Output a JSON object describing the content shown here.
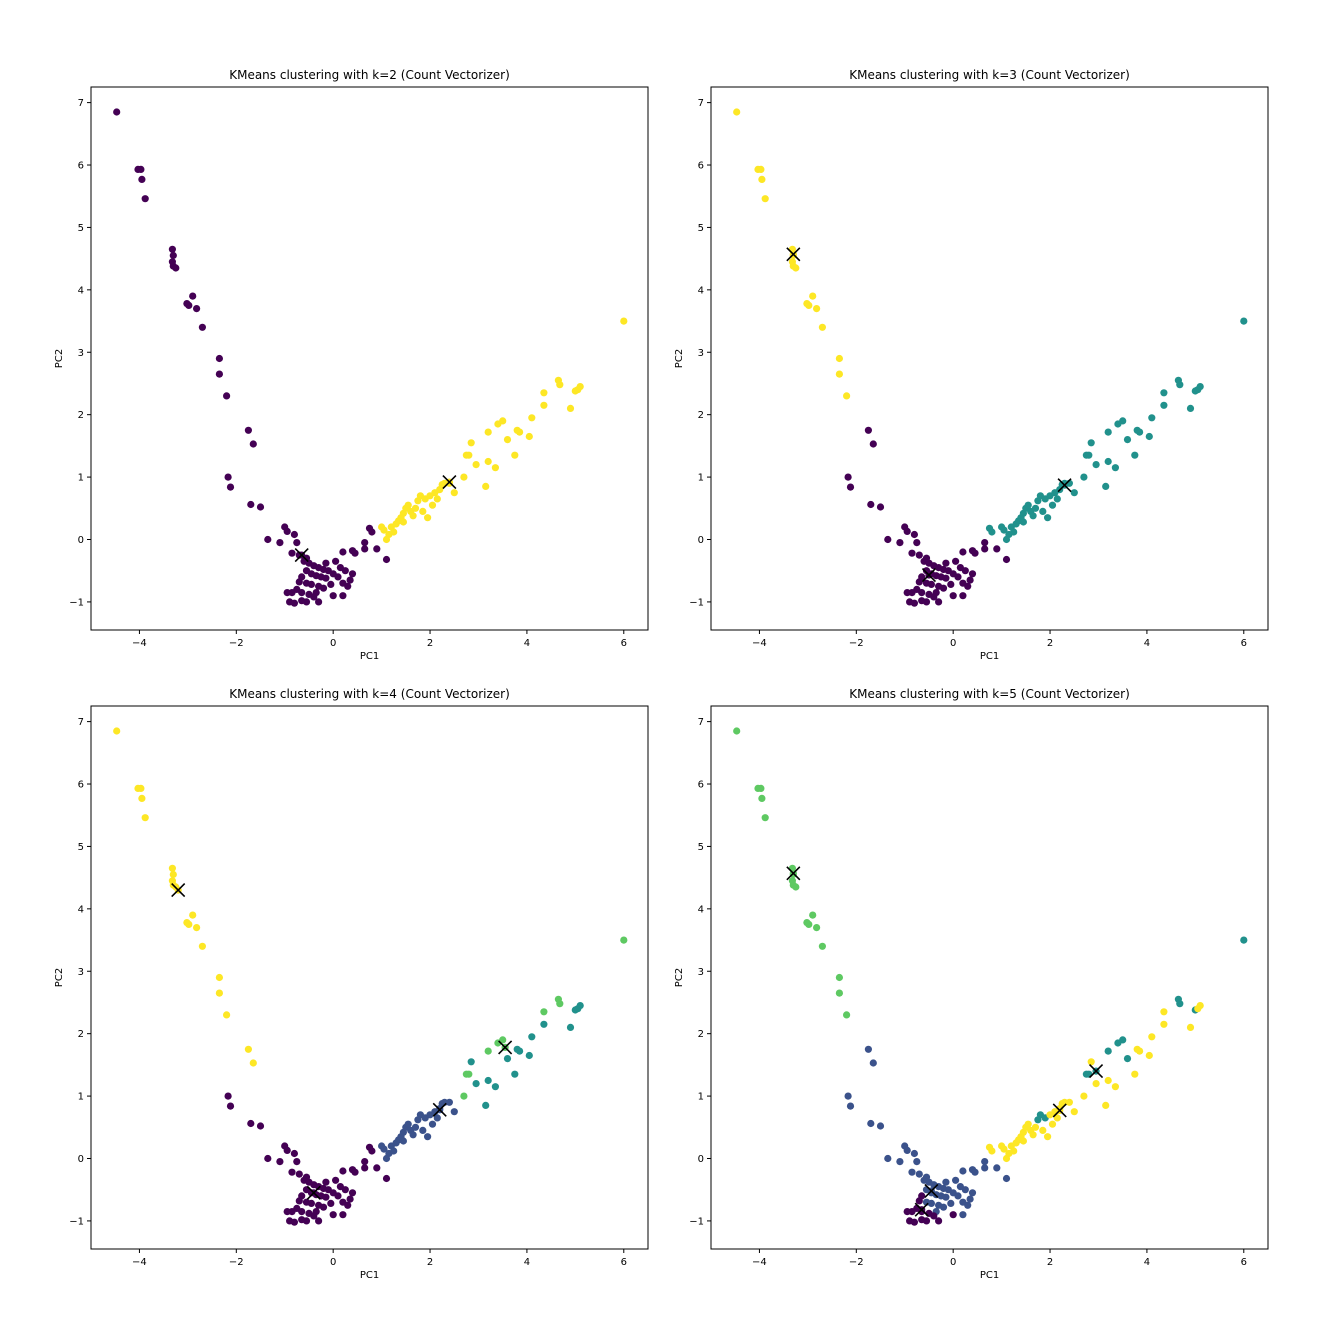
{
  "colors": {
    "c0": "#440154",
    "c1": "#3b528b",
    "c2": "#21918c",
    "c3": "#5ec962",
    "c4": "#fde725",
    "centroid": "#000000"
  },
  "chart_data": [
    {
      "type": "scatter",
      "title": "KMeans clustering with k=2 (Count Vectorizer)",
      "xlabel": "PC1",
      "ylabel": "PC2",
      "xlim": [
        -5,
        6.5
      ],
      "ylim": [
        -1.45,
        7.25
      ],
      "xticks": [
        -4,
        -2,
        0,
        2,
        4,
        6
      ],
      "yticks": [
        -1,
        0,
        1,
        2,
        3,
        4,
        5,
        6,
        7
      ],
      "grid": false,
      "legend": "none",
      "k": 2,
      "centroids": [
        [
          -0.65,
          -0.25,
          0
        ],
        [
          2.4,
          0.92,
          4
        ]
      ]
    },
    {
      "type": "scatter",
      "title": "KMeans clustering with k=3 (Count Vectorizer)",
      "xlabel": "PC1",
      "ylabel": "PC2",
      "xlim": [
        -5,
        6.5
      ],
      "ylim": [
        -1.45,
        7.25
      ],
      "xticks": [
        -4,
        -2,
        0,
        2,
        4,
        6
      ],
      "yticks": [
        -1,
        0,
        1,
        2,
        3,
        4,
        5,
        6,
        7
      ],
      "grid": false,
      "legend": "none",
      "k": 3,
      "centroids": [
        [
          -3.3,
          4.57,
          4
        ],
        [
          -0.5,
          -0.57,
          0
        ],
        [
          2.3,
          0.87,
          2
        ]
      ]
    },
    {
      "type": "scatter",
      "title": "KMeans clustering with k=4 (Count Vectorizer)",
      "xlabel": "PC1",
      "ylabel": "PC2",
      "xlim": [
        -5,
        6.5
      ],
      "ylim": [
        -1.45,
        7.25
      ],
      "xticks": [
        -4,
        -2,
        0,
        2,
        4,
        6
      ],
      "yticks": [
        -1,
        0,
        1,
        2,
        3,
        4,
        5,
        6,
        7
      ],
      "grid": false,
      "legend": "none",
      "k": 4,
      "centroids": [
        [
          -3.2,
          4.3,
          4
        ],
        [
          -0.4,
          -0.55,
          0
        ],
        [
          2.2,
          0.78,
          1
        ],
        [
          3.55,
          1.78,
          3
        ]
      ]
    },
    {
      "type": "scatter",
      "title": "KMeans clustering with k=5 (Count Vectorizer)",
      "xlabel": "PC1",
      "ylabel": "PC2",
      "xlim": [
        -5,
        6.5
      ],
      "ylim": [
        -1.45,
        7.25
      ],
      "xticks": [
        -4,
        -2,
        0,
        2,
        4,
        6
      ],
      "yticks": [
        -1,
        0,
        1,
        2,
        3,
        4,
        5,
        6,
        7
      ],
      "grid": false,
      "legend": "none",
      "k": 5,
      "centroids": [
        [
          -3.3,
          4.57,
          3
        ],
        [
          -0.65,
          -0.82,
          0
        ],
        [
          -0.45,
          -0.52,
          1
        ],
        [
          2.2,
          0.77,
          4
        ],
        [
          2.95,
          1.4,
          2
        ]
      ]
    }
  ],
  "points": [
    [
      -4.47,
      6.85,
      0,
      4,
      4,
      3
    ],
    [
      -4.03,
      5.93,
      0,
      4,
      4,
      3
    ],
    [
      -3.97,
      5.93,
      0,
      4,
      4,
      3
    ],
    [
      -3.95,
      5.77,
      0,
      4,
      4,
      3
    ],
    [
      -3.88,
      5.46,
      0,
      4,
      4,
      3
    ],
    [
      -3.32,
      4.65,
      0,
      4,
      4,
      3
    ],
    [
      -3.3,
      4.55,
      0,
      4,
      4,
      3
    ],
    [
      -3.32,
      4.45,
      0,
      4,
      4,
      3
    ],
    [
      -3.3,
      4.38,
      0,
      4,
      4,
      3
    ],
    [
      -3.25,
      4.35,
      0,
      4,
      4,
      3
    ],
    [
      -3.02,
      3.78,
      0,
      4,
      4,
      3
    ],
    [
      -2.98,
      3.75,
      0,
      4,
      4,
      3
    ],
    [
      -2.9,
      3.9,
      0,
      4,
      4,
      3
    ],
    [
      -2.82,
      3.7,
      0,
      4,
      4,
      3
    ],
    [
      -2.7,
      3.4,
      0,
      4,
      4,
      3
    ],
    [
      -2.35,
      2.9,
      0,
      4,
      4,
      3
    ],
    [
      -2.35,
      2.65,
      0,
      4,
      4,
      3
    ],
    [
      -2.2,
      2.3,
      0,
      4,
      4,
      3
    ],
    [
      -1.75,
      1.75,
      0,
      0,
      4,
      1
    ],
    [
      -1.65,
      1.53,
      0,
      0,
      4,
      1
    ],
    [
      -2.17,
      1.0,
      0,
      0,
      0,
      1
    ],
    [
      -2.12,
      0.84,
      0,
      0,
      0,
      1
    ],
    [
      -1.7,
      0.56,
      0,
      0,
      0,
      1
    ],
    [
      -1.5,
      0.52,
      0,
      0,
      0,
      1
    ],
    [
      -1.35,
      0.0,
      0,
      0,
      0,
      1
    ],
    [
      -1.0,
      0.2,
      0,
      0,
      0,
      1
    ],
    [
      -0.95,
      0.13,
      0,
      0,
      0,
      1
    ],
    [
      -1.1,
      -0.05,
      0,
      0,
      0,
      1
    ],
    [
      -0.8,
      0.08,
      0,
      0,
      0,
      1
    ],
    [
      -0.75,
      -0.05,
      0,
      0,
      0,
      1
    ],
    [
      -0.85,
      -0.22,
      0,
      0,
      0,
      1
    ],
    [
      -0.7,
      -0.25,
      0,
      0,
      0,
      1
    ],
    [
      -0.6,
      -0.35,
      0,
      0,
      0,
      1
    ],
    [
      -0.5,
      -0.38,
      0,
      0,
      0,
      1
    ],
    [
      -0.4,
      -0.42,
      0,
      0,
      0,
      1
    ],
    [
      -0.3,
      -0.45,
      0,
      0,
      0,
      1
    ],
    [
      -0.2,
      -0.48,
      0,
      0,
      0,
      1
    ],
    [
      -0.1,
      -0.5,
      0,
      0,
      0,
      1
    ],
    [
      -0.55,
      -0.5,
      0,
      0,
      0,
      1
    ],
    [
      -0.45,
      -0.55,
      0,
      0,
      0,
      1
    ],
    [
      -0.35,
      -0.58,
      0,
      0,
      0,
      1
    ],
    [
      -0.25,
      -0.6,
      0,
      0,
      0,
      1
    ],
    [
      -0.15,
      -0.62,
      0,
      0,
      0,
      1
    ],
    [
      0.0,
      -0.55,
      0,
      0,
      0,
      1
    ],
    [
      0.1,
      -0.6,
      0,
      0,
      0,
      1
    ],
    [
      -0.65,
      -0.6,
      0,
      0,
      0,
      0
    ],
    [
      -0.7,
      -0.68,
      0,
      0,
      0,
      0
    ],
    [
      -0.55,
      -0.7,
      0,
      0,
      0,
      1
    ],
    [
      -0.45,
      -0.72,
      0,
      0,
      0,
      1
    ],
    [
      -0.3,
      -0.75,
      0,
      0,
      0,
      1
    ],
    [
      -0.2,
      -0.78,
      0,
      0,
      0,
      1
    ],
    [
      -0.05,
      -0.72,
      0,
      0,
      0,
      1
    ],
    [
      -0.75,
      -0.8,
      0,
      0,
      0,
      0
    ],
    [
      -0.85,
      -0.85,
      0,
      0,
      0,
      0
    ],
    [
      -0.65,
      -0.85,
      0,
      0,
      0,
      0
    ],
    [
      -0.5,
      -0.88,
      0,
      0,
      0,
      0
    ],
    [
      -0.35,
      -0.85,
      0,
      0,
      0,
      1
    ],
    [
      -0.9,
      -1.0,
      0,
      0,
      0,
      0
    ],
    [
      -0.8,
      -1.02,
      0,
      0,
      0,
      0
    ],
    [
      -0.65,
      -0.98,
      0,
      0,
      0,
      0
    ],
    [
      -0.55,
      -1.0,
      0,
      0,
      0,
      0
    ],
    [
      -0.95,
      -0.85,
      0,
      0,
      0,
      0
    ],
    [
      -0.4,
      -0.92,
      0,
      0,
      0,
      0
    ],
    [
      0.2,
      -0.7,
      0,
      0,
      0,
      1
    ],
    [
      0.3,
      -0.75,
      0,
      0,
      0,
      1
    ],
    [
      0.35,
      -0.65,
      0,
      0,
      0,
      1
    ],
    [
      0.15,
      -0.45,
      0,
      0,
      0,
      1
    ],
    [
      0.25,
      -0.5,
      0,
      0,
      0,
      1
    ],
    [
      0.4,
      -0.55,
      0,
      0,
      0,
      1
    ],
    [
      -0.15,
      -0.38,
      0,
      0,
      0,
      1
    ],
    [
      0.05,
      -0.35,
      0,
      0,
      0,
      1
    ],
    [
      -0.55,
      -0.3,
      0,
      0,
      0,
      1
    ],
    [
      0.2,
      -0.2,
      0,
      0,
      0,
      1
    ],
    [
      0.4,
      -0.18,
      0,
      0,
      0,
      1
    ],
    [
      0.45,
      -0.22,
      0,
      0,
      0,
      1
    ],
    [
      0.2,
      -0.9,
      0,
      0,
      0,
      1
    ],
    [
      0.0,
      -0.9,
      0,
      0,
      0,
      0
    ],
    [
      -0.3,
      -1.0,
      0,
      0,
      0,
      0
    ],
    [
      0.65,
      -0.05,
      0,
      0,
      0,
      1
    ],
    [
      0.8,
      0.12,
      0,
      2,
      0,
      4
    ],
    [
      0.9,
      -0.15,
      0,
      0,
      0,
      1
    ],
    [
      0.65,
      -0.15,
      0,
      0,
      0,
      1
    ],
    [
      0.75,
      0.18,
      0,
      2,
      0,
      4
    ],
    [
      1.1,
      -0.32,
      0,
      0,
      0,
      1
    ],
    [
      1.0,
      0.2,
      4,
      2,
      1,
      4
    ],
    [
      1.05,
      0.15,
      4,
      2,
      1,
      4
    ],
    [
      1.15,
      0.08,
      4,
      2,
      1,
      4
    ],
    [
      1.2,
      0.2,
      4,
      2,
      1,
      4
    ],
    [
      1.3,
      0.25,
      4,
      2,
      1,
      4
    ],
    [
      1.35,
      0.3,
      4,
      2,
      1,
      4
    ],
    [
      1.4,
      0.35,
      4,
      2,
      1,
      4
    ],
    [
      1.45,
      0.42,
      4,
      2,
      1,
      4
    ],
    [
      1.5,
      0.5,
      4,
      2,
      1,
      4
    ],
    [
      1.55,
      0.55,
      4,
      2,
      1,
      4
    ],
    [
      1.6,
      0.45,
      4,
      2,
      1,
      4
    ],
    [
      1.7,
      0.5,
      4,
      2,
      1,
      4
    ],
    [
      1.75,
      0.62,
      4,
      2,
      1,
      2
    ],
    [
      1.8,
      0.7,
      4,
      2,
      1,
      2
    ],
    [
      1.9,
      0.65,
      4,
      2,
      1,
      2
    ],
    [
      2.0,
      0.7,
      4,
      2,
      1,
      4
    ],
    [
      2.1,
      0.75,
      4,
      2,
      1,
      4
    ],
    [
      2.2,
      0.8,
      4,
      2,
      1,
      4
    ],
    [
      2.25,
      0.88,
      4,
      2,
      1,
      4
    ],
    [
      2.3,
      0.9,
      4,
      2,
      1,
      4
    ],
    [
      2.15,
      0.65,
      4,
      2,
      1,
      4
    ],
    [
      2.05,
      0.55,
      4,
      2,
      1,
      4
    ],
    [
      1.85,
      0.45,
      4,
      2,
      1,
      4
    ],
    [
      1.65,
      0.38,
      4,
      2,
      1,
      4
    ],
    [
      1.45,
      0.28,
      4,
      2,
      1,
      4
    ],
    [
      1.25,
      0.12,
      4,
      2,
      1,
      4
    ],
    [
      1.1,
      0.0,
      4,
      2,
      1,
      4
    ],
    [
      1.95,
      0.35,
      4,
      2,
      1,
      4
    ],
    [
      2.5,
      0.75,
      4,
      2,
      1,
      4
    ],
    [
      2.4,
      0.9,
      4,
      2,
      1,
      4
    ],
    [
      2.75,
      1.35,
      4,
      2,
      3,
      2
    ],
    [
      2.8,
      1.35,
      4,
      2,
      3,
      2
    ],
    [
      2.7,
      1.0,
      4,
      2,
      3,
      4
    ],
    [
      2.85,
      1.55,
      4,
      2,
      2,
      4
    ],
    [
      2.95,
      1.2,
      4,
      2,
      2,
      4
    ],
    [
      3.15,
      0.85,
      4,
      2,
      2,
      4
    ],
    [
      3.2,
      1.25,
      4,
      2,
      2,
      4
    ],
    [
      3.35,
      1.15,
      4,
      2,
      2,
      4
    ],
    [
      3.2,
      1.72,
      4,
      2,
      3,
      2
    ],
    [
      3.5,
      1.9,
      4,
      2,
      3,
      2
    ],
    [
      3.4,
      1.85,
      4,
      2,
      3,
      2
    ],
    [
      3.6,
      1.6,
      4,
      2,
      2,
      2
    ],
    [
      3.75,
      1.35,
      4,
      2,
      2,
      4
    ],
    [
      3.8,
      1.75,
      4,
      2,
      2,
      4
    ],
    [
      3.85,
      1.72,
      4,
      2,
      2,
      4
    ],
    [
      4.05,
      1.65,
      4,
      2,
      2,
      4
    ],
    [
      4.1,
      1.95,
      4,
      2,
      2,
      4
    ],
    [
      4.35,
      2.15,
      4,
      2,
      2,
      4
    ],
    [
      4.65,
      2.55,
      4,
      2,
      3,
      2
    ],
    [
      4.68,
      2.48,
      4,
      2,
      3,
      2
    ],
    [
      4.35,
      2.35,
      4,
      2,
      3,
      4
    ],
    [
      4.9,
      2.1,
      4,
      2,
      2,
      4
    ],
    [
      5.0,
      2.38,
      4,
      2,
      2,
      2
    ],
    [
      5.05,
      2.4,
      4,
      2,
      2,
      4
    ],
    [
      5.1,
      2.45,
      4,
      2,
      2,
      4
    ],
    [
      6.0,
      3.5,
      4,
      2,
      3,
      2
    ]
  ]
}
